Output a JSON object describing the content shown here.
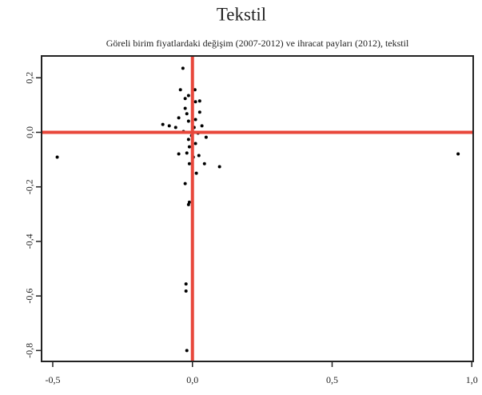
{
  "chart_data": {
    "type": "scatter",
    "title": "Tekstil",
    "subtitle": "Göreli birim fiyatlardaki değişim (2007-2012) ve ihracat payları (2012), tekstil",
    "color": "#000000",
    "reference_lines": {
      "x": 0,
      "y": 0,
      "color": "#e8473b"
    },
    "xlim": [
      -0.54,
      1.005
    ],
    "ylim": [
      -0.84,
      0.28
    ],
    "xticks": [
      {
        "value": -0.5,
        "label": "-0,5"
      },
      {
        "value": 0,
        "label": "0,0"
      },
      {
        "value": 0.5,
        "label": "0,5"
      },
      {
        "value": 1,
        "label": "1,0"
      }
    ],
    "yticks": [
      {
        "value": 0.2,
        "label": "0,2"
      },
      {
        "value": 0,
        "label": "0,0"
      },
      {
        "value": -0.2,
        "label": "-0,2"
      },
      {
        "value": -0.4,
        "label": "-0,4"
      },
      {
        "value": -0.6,
        "label": "-0,6"
      },
      {
        "value": -0.8,
        "label": "-0,8"
      }
    ],
    "x": [
      -0.484,
      0.951,
      -0.034,
      -0.043,
      -0.026,
      0.011,
      0.026,
      -0.02,
      -0.049,
      0.026,
      -0.106,
      -0.083,
      -0.06,
      -0.014,
      0.011,
      -0.032,
      0.034,
      0.049,
      0.02,
      -0.014,
      0.011,
      -0.049,
      -0.02,
      0.023,
      0.043,
      0.097,
      -0.011,
      0.014,
      -0.026,
      -0.011,
      -0.014,
      -0.023,
      -0.023,
      -0.02,
      -0.026,
      -0.003,
      0.006,
      -0.011,
      0.003,
      -0.014,
      0.009
    ],
    "y": [
      -0.091,
      -0.079,
      0.235,
      0.156,
      0.124,
      0.112,
      0.115,
      0.068,
      0.053,
      0.074,
      0.029,
      0.024,
      0.018,
      0.041,
      0.047,
      0.003,
      0.024,
      -0.018,
      -0.003,
      -0.026,
      -0.041,
      -0.079,
      -0.076,
      -0.085,
      -0.115,
      -0.126,
      -0.115,
      -0.15,
      -0.188,
      -0.256,
      -0.265,
      -0.556,
      -0.582,
      -0.8,
      0.088,
      -0.012,
      0.018,
      -0.053,
      -0.091,
      0.135,
      0.156
    ]
  }
}
